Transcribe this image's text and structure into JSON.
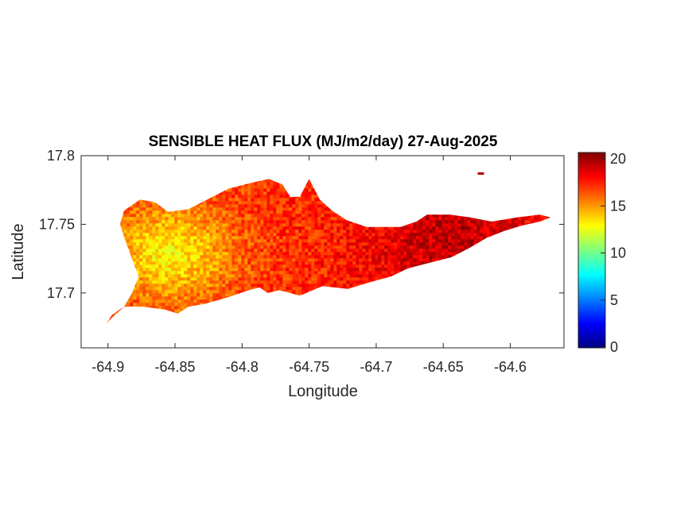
{
  "chart_data": {
    "type": "heatmap",
    "title": "SENSIBLE HEAT FLUX (MJ/m2/day) 27-Aug-2025",
    "xlabel": "Longitude",
    "ylabel": "Latitude",
    "xlim": [
      -64.92,
      -64.56
    ],
    "ylim": [
      17.66,
      17.8
    ],
    "x_ticks": [
      -64.9,
      -64.85,
      -64.8,
      -64.75,
      -64.7,
      -64.65,
      -64.6
    ],
    "x_tick_labels": [
      "-64.9",
      "-64.85",
      "-64.8",
      "-64.75",
      "-64.7",
      "-64.65",
      "-64.6"
    ],
    "y_ticks": [
      17.7,
      17.75,
      17.8
    ],
    "y_tick_labels": [
      "17.7",
      "17.75",
      "17.8"
    ],
    "colorbar": {
      "colormap": "jet",
      "range": [
        0,
        20
      ],
      "ticks": [
        0,
        5,
        10,
        15,
        20
      ],
      "tick_labels": [
        "0",
        "5",
        "10",
        "15",
        "20"
      ]
    },
    "grid": false,
    "region_outline": [
      [
        -64.901,
        17.678
      ],
      [
        -64.897,
        17.684
      ],
      [
        -64.888,
        17.69
      ],
      [
        -64.882,
        17.7
      ],
      [
        -64.877,
        17.712
      ],
      [
        -64.881,
        17.722
      ],
      [
        -64.887,
        17.738
      ],
      [
        -64.891,
        17.75
      ],
      [
        -64.888,
        17.76
      ],
      [
        -64.876,
        17.768
      ],
      [
        -64.865,
        17.766
      ],
      [
        -64.855,
        17.759
      ],
      [
        -64.84,
        17.761
      ],
      [
        -64.826,
        17.768
      ],
      [
        -64.81,
        17.776
      ],
      [
        -64.794,
        17.78
      ],
      [
        -64.78,
        17.783
      ],
      [
        -64.77,
        17.779
      ],
      [
        -64.764,
        17.77
      ],
      [
        -64.757,
        17.77
      ],
      [
        -64.75,
        17.783
      ],
      [
        -64.742,
        17.768
      ],
      [
        -64.733,
        17.76
      ],
      [
        -64.722,
        17.753
      ],
      [
        -64.707,
        17.748
      ],
      [
        -64.692,
        17.748
      ],
      [
        -64.682,
        17.748
      ],
      [
        -64.67,
        17.752
      ],
      [
        -64.662,
        17.757
      ],
      [
        -64.645,
        17.757
      ],
      [
        -64.63,
        17.755
      ],
      [
        -64.614,
        17.752
      ],
      [
        -64.595,
        17.755
      ],
      [
        -64.578,
        17.757
      ],
      [
        -64.57,
        17.755
      ],
      [
        -64.578,
        17.752
      ],
      [
        -64.592,
        17.749
      ],
      [
        -64.605,
        17.745
      ],
      [
        -64.618,
        17.74
      ],
      [
        -64.63,
        17.733
      ],
      [
        -64.644,
        17.726
      ],
      [
        -64.66,
        17.722
      ],
      [
        -64.676,
        17.718
      ],
      [
        -64.689,
        17.712
      ],
      [
        -64.704,
        17.708
      ],
      [
        -64.721,
        17.703
      ],
      [
        -64.74,
        17.705
      ],
      [
        -64.757,
        17.698
      ],
      [
        -64.772,
        17.702
      ],
      [
        -64.781,
        17.7
      ],
      [
        -64.787,
        17.704
      ],
      [
        -64.795,
        17.702
      ],
      [
        -64.81,
        17.697
      ],
      [
        -64.828,
        17.692
      ],
      [
        -64.84,
        17.69
      ],
      [
        -64.848,
        17.685
      ],
      [
        -64.858,
        17.688
      ],
      [
        -64.874,
        17.69
      ],
      [
        -64.888,
        17.69
      ],
      [
        -64.897,
        17.682
      ]
    ],
    "islet": {
      "lon": -64.622,
      "lat": 17.787,
      "value": 19
    },
    "cool_zone": {
      "center": [
        -64.855,
        17.73
      ],
      "value": 13
    },
    "warm_zone": {
      "center": [
        -64.64,
        17.735
      ],
      "value": 18.5
    },
    "base_value": 16.5
  }
}
